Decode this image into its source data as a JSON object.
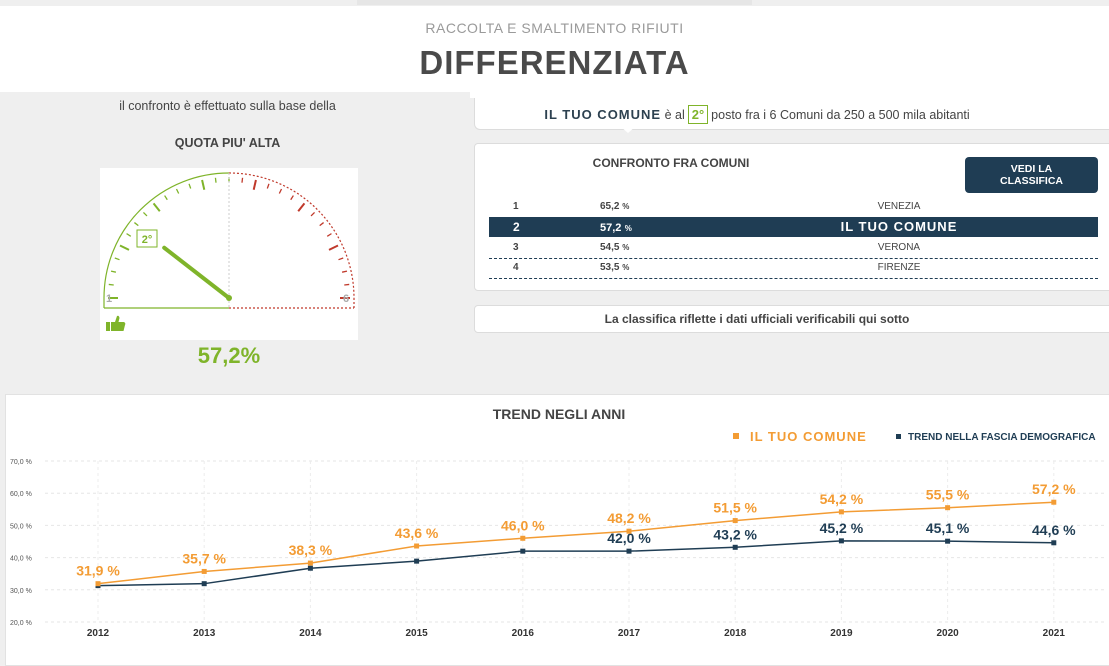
{
  "header": {
    "subtitle": "RACCOLTA E SMALTIMENTO RIFIUTI",
    "title": "DIFFERENZIATA"
  },
  "left": {
    "basis_text": "il confronto è effettuato sulla base della",
    "quota_label": "QUOTA PIU' ALTA",
    "gauge": {
      "min_label": "1",
      "max_label": "6",
      "position_label": "2°",
      "position": 2,
      "positions_total": 6,
      "thumb_icon": "thumbs-up-icon",
      "active_color": "#7fb42a",
      "inactive_color": "#c0392b"
    },
    "value": "57,2%"
  },
  "rank": {
    "brand": "IL TUO COMUNE",
    "pre": "è al",
    "position": "2°",
    "post": "posto fra i 6 Comuni da 250 a 500 mila abitanti"
  },
  "compare": {
    "title": "CONFRONTO FRA COMUNI",
    "button": "VEDI LA CLASSIFICA",
    "rows": [
      {
        "rank": "1",
        "value": "65,2",
        "unit": "%",
        "city": "VENEZIA"
      },
      {
        "rank": "2",
        "value": "57,2",
        "unit": "%",
        "city": "IL TUO COMUNE"
      },
      {
        "rank": "3",
        "value": "54,5",
        "unit": "%",
        "city": "VERONA"
      },
      {
        "rank": "4",
        "value": "53,5",
        "unit": "%",
        "city": "FIRENZE"
      }
    ]
  },
  "note": "La classifica riflette i dati ufficiali verificabili qui sotto",
  "chart_data": {
    "type": "line",
    "title": "TREND NEGLI ANNI",
    "x": [
      "2012",
      "2013",
      "2014",
      "2015",
      "2016",
      "2017",
      "2018",
      "2019",
      "2020",
      "2021"
    ],
    "yticks": [
      "70,0 %",
      "60,0 %",
      "50,0 %",
      "40,0 %",
      "30,0 %",
      "20,0 %"
    ],
    "ylim": [
      20,
      70
    ],
    "grid": true,
    "legend_position": "top-right",
    "series": [
      {
        "name": "IL TUO COMUNE",
        "color": "#f39c34",
        "values": [
          31.9,
          35.7,
          38.3,
          43.6,
          46.0,
          48.2,
          51.5,
          54.2,
          55.5,
          57.2
        ],
        "labels": [
          "31,9 %",
          "35,7 %",
          "38,3 %",
          "43,6 %",
          "46,0 %",
          "48,2 %",
          "51,5 %",
          "54,2 %",
          "55,5 %",
          "57,2 %"
        ]
      },
      {
        "name": "TREND NELLA FASCIA DEMOGRAFICA",
        "color": "#1f3d54",
        "values": [
          31.3,
          31.9,
          36.7,
          38.9,
          42.0,
          42.0,
          43.2,
          45.2,
          45.1,
          44.6
        ],
        "labels": [
          "",
          "",
          "",
          "",
          "",
          "42,0 %",
          "43,2 %",
          "45,2 %",
          "45,1 %",
          "44,6 %"
        ]
      }
    ]
  }
}
